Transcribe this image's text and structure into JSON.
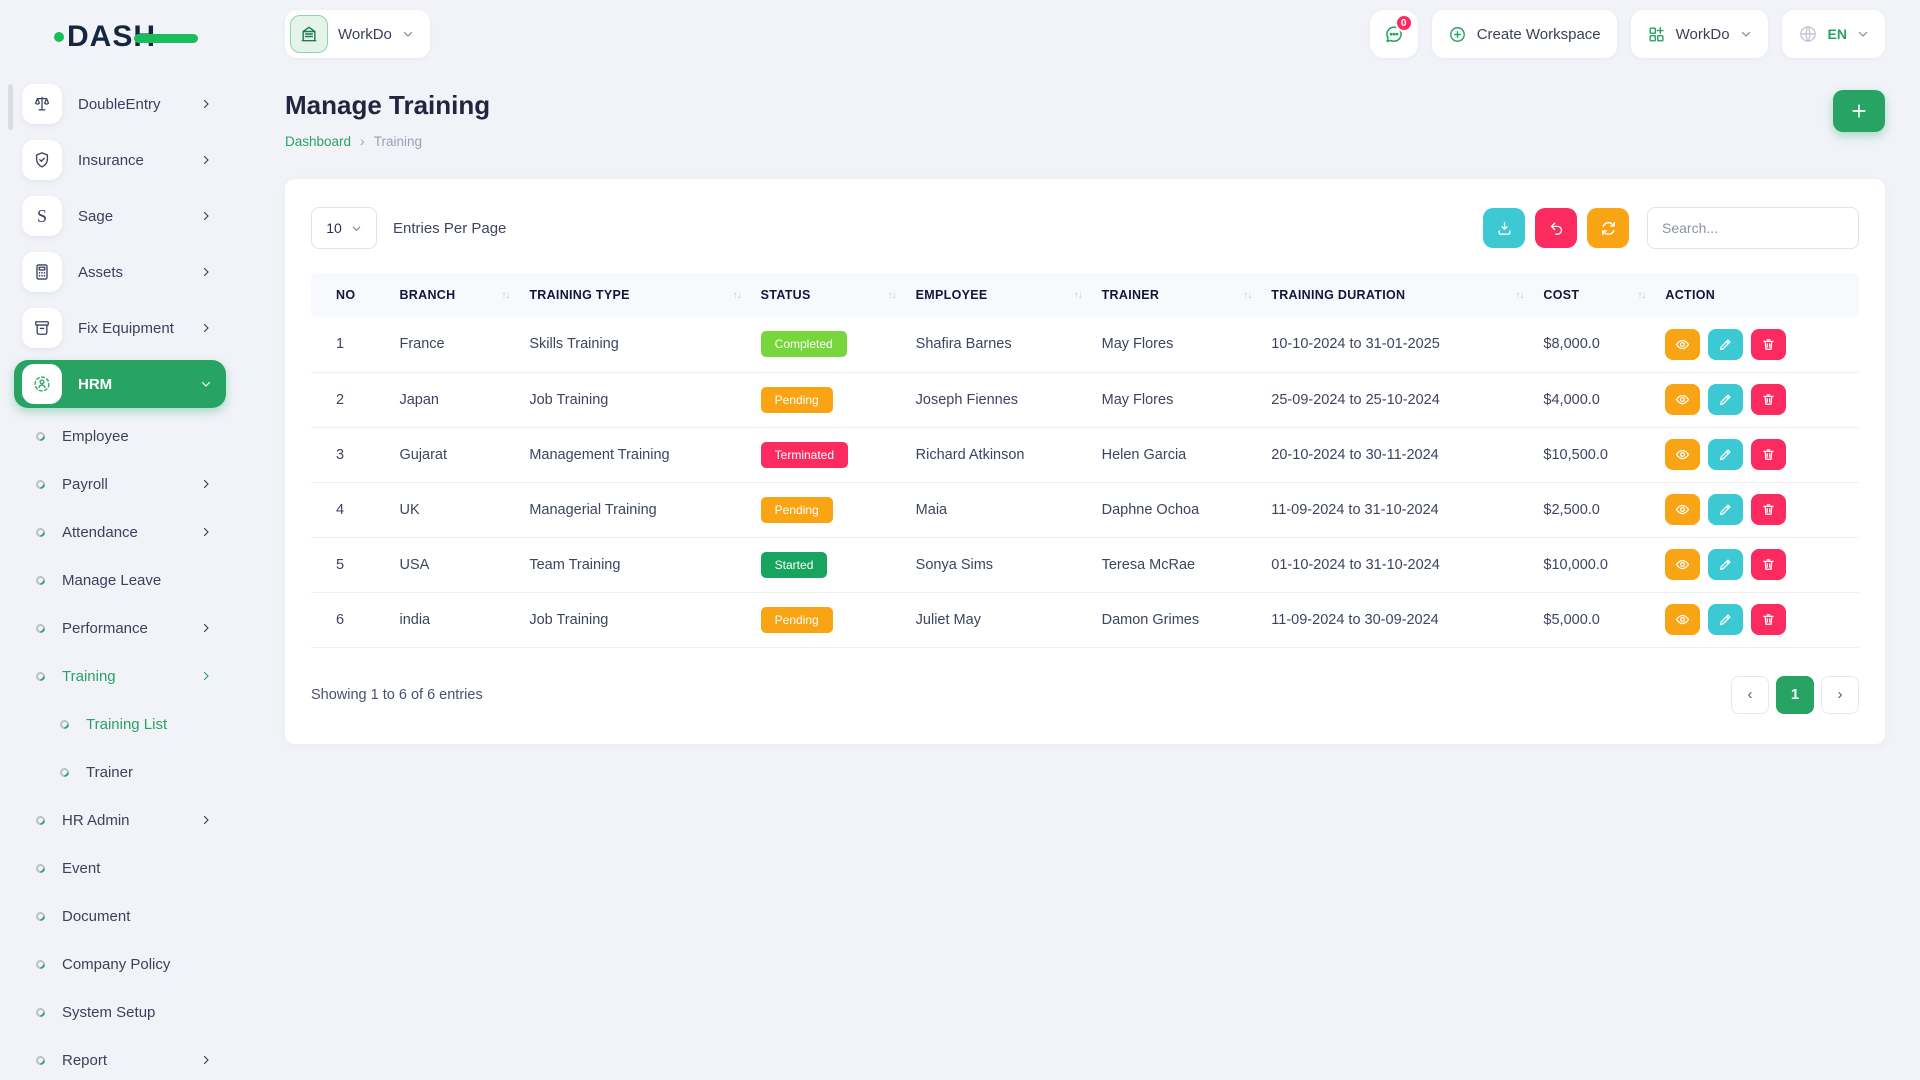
{
  "brand": {
    "name": "DASH"
  },
  "topbar": {
    "workspace": {
      "label": "WorkDo",
      "icon": "building-icon"
    },
    "messages": {
      "badge": "0",
      "icon": "chat-icon"
    },
    "create_workspace": {
      "label": "Create Workspace",
      "icon": "circle-plus-icon"
    },
    "apps_menu": {
      "label": "WorkDo",
      "icon": "grid-plus-icon"
    },
    "language": {
      "label": "EN",
      "icon": "globe-icon"
    }
  },
  "sidebar": {
    "items": [
      {
        "label": "DoubleEntry",
        "icon": "scales",
        "chevron": "right"
      },
      {
        "label": "Insurance",
        "icon": "shield",
        "chevron": "right"
      },
      {
        "label": "Sage",
        "icon": "sage",
        "chevron": "right"
      },
      {
        "label": "Assets",
        "icon": "calculator",
        "chevron": "right"
      },
      {
        "label": "Fix Equipment",
        "icon": "archive",
        "chevron": "right"
      },
      {
        "label": "HRM",
        "icon": "users",
        "chevron": "down",
        "active": true
      },
      {
        "label": "Employee",
        "type": "sub"
      },
      {
        "label": "Payroll",
        "type": "sub",
        "chevron": "right"
      },
      {
        "label": "Attendance",
        "type": "sub",
        "chevron": "right"
      },
      {
        "label": "Manage Leave",
        "type": "sub"
      },
      {
        "label": "Performance",
        "type": "sub",
        "chevron": "right"
      },
      {
        "label": "Training",
        "type": "sub",
        "chevron": "right",
        "active": true
      },
      {
        "label": "Training List",
        "type": "sub2",
        "active": true
      },
      {
        "label": "Trainer",
        "type": "sub2"
      },
      {
        "label": "HR Admin",
        "type": "sub",
        "chevron": "right"
      },
      {
        "label": "Event",
        "type": "sub"
      },
      {
        "label": "Document",
        "type": "sub"
      },
      {
        "label": "Company Policy",
        "type": "sub"
      },
      {
        "label": "System Setup",
        "type": "sub"
      },
      {
        "label": "Report",
        "type": "sub",
        "chevron": "right"
      }
    ]
  },
  "page": {
    "title": "Manage Training",
    "breadcrumb": {
      "parent": "Dashboard",
      "separator": "›",
      "current": "Training"
    }
  },
  "controls": {
    "entries_value": "10",
    "entries_label": "Entries Per Page",
    "search_placeholder": "Search...",
    "buttons": [
      {
        "name": "export",
        "icon": "download-icon",
        "color": "#3dc9d4"
      },
      {
        "name": "undo",
        "icon": "undo-icon",
        "color": "#fb2b5f"
      },
      {
        "name": "refresh",
        "icon": "refresh-icon",
        "color": "#f8a414"
      }
    ]
  },
  "table": {
    "sort_glyph": "↑↓",
    "columns": [
      {
        "label": "NO",
        "sortable": false
      },
      {
        "label": "BRANCH",
        "sortable": true
      },
      {
        "label": "TRAINING TYPE",
        "sortable": true
      },
      {
        "label": "STATUS",
        "sortable": true
      },
      {
        "label": "EMPLOYEE",
        "sortable": true
      },
      {
        "label": "TRAINER",
        "sortable": true
      },
      {
        "label": "TRAINING DURATION",
        "sortable": true
      },
      {
        "label": "COST",
        "sortable": true
      },
      {
        "label": "ACTION",
        "sortable": false
      }
    ],
    "status_colors": {
      "Completed": "#77d63c",
      "Pending": "#f8a414",
      "Terminated": "#fb2b5f",
      "Started": "#16a45f"
    },
    "actions": [
      {
        "name": "view",
        "icon": "eye-icon",
        "color": "#f8a414"
      },
      {
        "name": "edit",
        "icon": "pencil-icon",
        "color": "#3dc9d4"
      },
      {
        "name": "delete",
        "icon": "trash-icon",
        "color": "#fb2b5f"
      }
    ],
    "rows": [
      {
        "no": "1",
        "branch": "France",
        "training_type": "Skills Training",
        "status": "Completed",
        "employee": "Shafira Barnes",
        "trainer": "May Flores",
        "duration": "10-10-2024 to 31-01-2025",
        "cost": "$8,000.0"
      },
      {
        "no": "2",
        "branch": "Japan",
        "training_type": "Job Training",
        "status": "Pending",
        "employee": "Joseph Fiennes",
        "trainer": "May Flores",
        "duration": "25-09-2024 to 25-10-2024",
        "cost": "$4,000.0"
      },
      {
        "no": "3",
        "branch": "Gujarat",
        "training_type": "Management Training",
        "status": "Terminated",
        "employee": "Richard Atkinson",
        "trainer": "Helen Garcia",
        "duration": "20-10-2024 to 30-11-2024",
        "cost": "$10,500.0"
      },
      {
        "no": "4",
        "branch": "UK",
        "training_type": "Managerial Training",
        "status": "Pending",
        "employee": "Maia",
        "trainer": "Daphne Ochoa",
        "duration": "11-09-2024 to 31-10-2024",
        "cost": "$2,500.0"
      },
      {
        "no": "5",
        "branch": "USA",
        "training_type": "Team Training",
        "status": "Started",
        "employee": "Sonya Sims",
        "trainer": "Teresa McRae",
        "duration": "01-10-2024 to 31-10-2024",
        "cost": "$10,000.0"
      },
      {
        "no": "6",
        "branch": "india",
        "training_type": "Job Training",
        "status": "Pending",
        "employee": "Juliet May",
        "trainer": "Damon Grimes",
        "duration": "11-09-2024 to 30-09-2024",
        "cost": "$5,000.0"
      }
    ]
  },
  "footer": {
    "summary": "Showing 1 to 6 of 6 entries",
    "prev": "‹",
    "page": "1",
    "next": "›"
  },
  "colors": {
    "primary_green": "#27a364",
    "logo_green": "#1abc5b",
    "teal": "#3dc9d4",
    "pink": "#fb2b5f",
    "orange": "#f8a414",
    "page_background": "#f1f3f8"
  }
}
